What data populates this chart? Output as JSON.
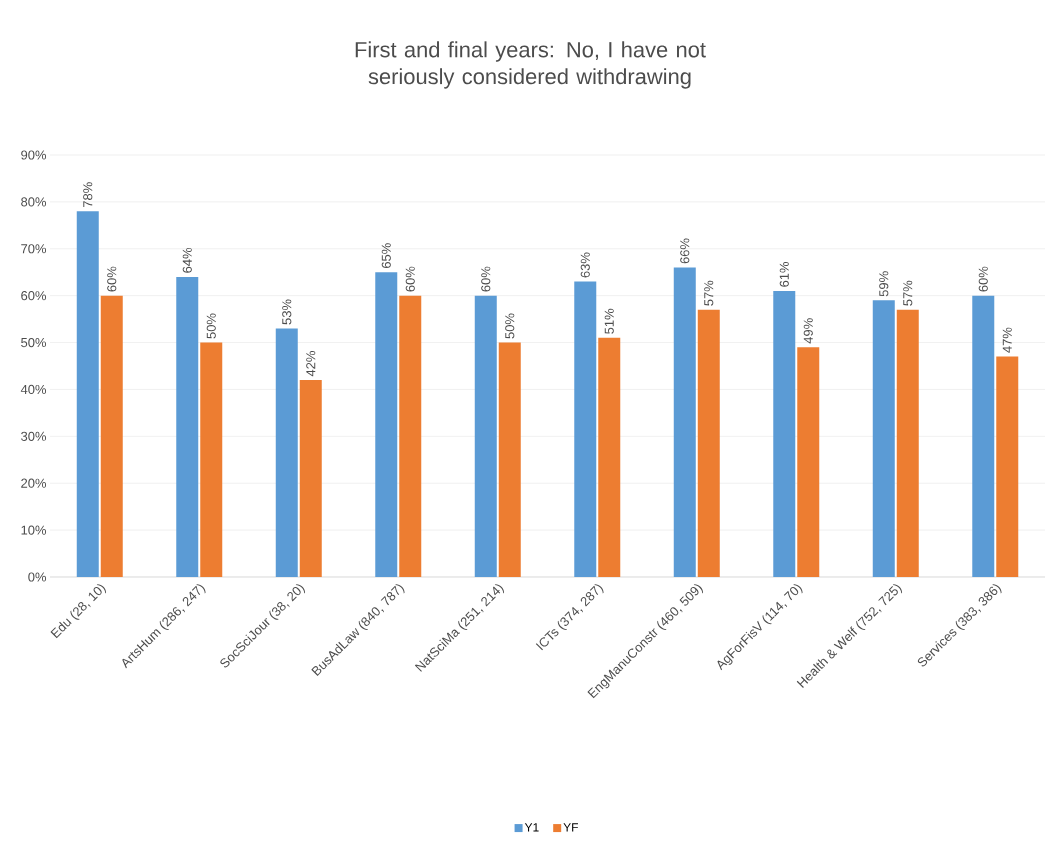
{
  "chart_data": {
    "type": "bar",
    "title": "First and final years: No, I have not seriously considered withdrawing",
    "categories": [
      "Edu (28, 10)",
      "ArtsHum (286, 247)",
      "SocSciJour (38, 20)",
      "BusAdLaw (840, 787)",
      "NatSciMa (251, 214)",
      "ICTs (374, 287)",
      "EngManuConstr (460, 509)",
      "AgForFisV (114, 70)",
      "Health & Welf (752, 725)",
      "Services (383, 386)"
    ],
    "series": [
      {
        "name": "Y1",
        "color": "#5b9bd5",
        "values": [
          78,
          64,
          53,
          65,
          60,
          63,
          66,
          61,
          59,
          60
        ],
        "value_labels": [
          "78%",
          "64%",
          "53%",
          "65%",
          "60%",
          "63%",
          "66%",
          "61%",
          "59%",
          "60%"
        ]
      },
      {
        "name": "YF",
        "color": "#ed7d31",
        "values": [
          60,
          50,
          42,
          60,
          50,
          51,
          57,
          49,
          57,
          47
        ],
        "value_labels": [
          "60%",
          "50%",
          "42%",
          "60%",
          "50%",
          "51%",
          "57%",
          "49%",
          "57%",
          "47%"
        ]
      }
    ],
    "ylim": [
      0,
      90
    ],
    "yticks": [
      {
        "value": 0,
        "label": "0%"
      },
      {
        "value": 10,
        "label": "10%"
      },
      {
        "value": 20,
        "label": "20%"
      },
      {
        "value": 30,
        "label": "30%"
      },
      {
        "value": 40,
        "label": "40%"
      },
      {
        "value": 50,
        "label": "50%"
      },
      {
        "value": 60,
        "label": "60%"
      },
      {
        "value": 70,
        "label": "70%"
      },
      {
        "value": 80,
        "label": "80%"
      },
      {
        "value": 90,
        "label": "90%"
      }
    ],
    "grid": "y",
    "legend": "bottom"
  }
}
